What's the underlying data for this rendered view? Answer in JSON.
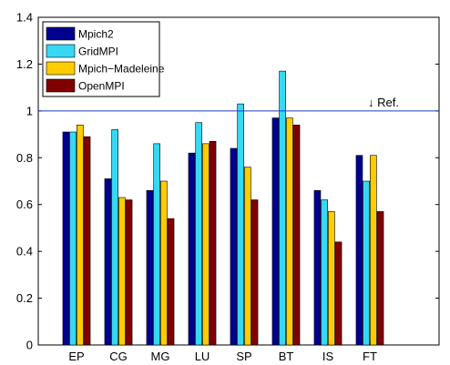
{
  "chart_data": {
    "type": "bar",
    "categories": [
      "EP",
      "CG",
      "MG",
      "LU",
      "SP",
      "BT",
      "IS",
      "FT"
    ],
    "series": [
      {
        "name": "Mpich2",
        "values": [
          0.91,
          0.71,
          0.66,
          0.82,
          0.84,
          0.97,
          0.66,
          0.81
        ]
      },
      {
        "name": "GridMPI",
        "values": [
          0.91,
          0.92,
          0.86,
          0.95,
          1.03,
          1.17,
          0.62,
          0.7
        ]
      },
      {
        "name": "Mpich−Madeleine",
        "values": [
          0.94,
          0.63,
          0.7,
          0.86,
          0.76,
          0.97,
          0.57,
          0.81
        ]
      },
      {
        "name": "OpenMPI",
        "values": [
          0.89,
          0.62,
          0.54,
          0.87,
          0.62,
          0.94,
          0.44,
          0.57
        ]
      }
    ],
    "colors": [
      "#00008f",
      "#36d8f4",
      "#ffcc00",
      "#800000"
    ],
    "ylim": [
      0,
      1.4
    ],
    "yticks": [
      "0",
      "0.2",
      "0.4",
      "0.6",
      "0.8",
      "1",
      "1.2",
      "1.4"
    ],
    "reference": {
      "value": 1.0,
      "label": "↓ Ref.",
      "color": "#1f3bbf"
    },
    "legend_position": "top-left",
    "grid": false,
    "title": "",
    "xlabel": "",
    "ylabel": ""
  }
}
